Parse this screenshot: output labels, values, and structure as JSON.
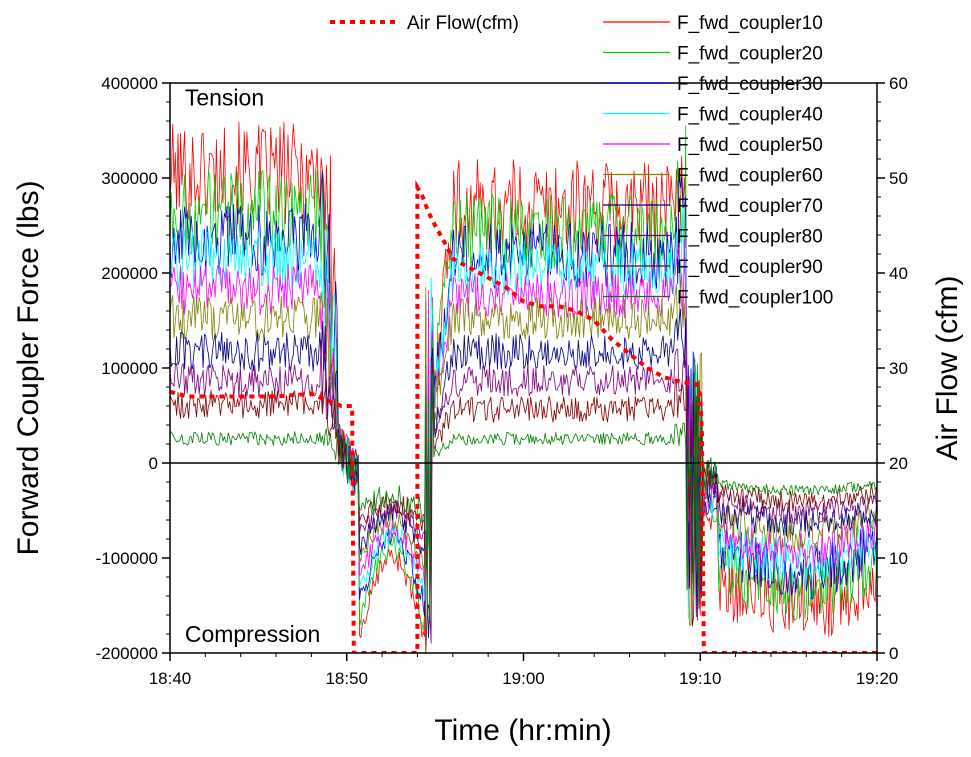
{
  "chart_data": {
    "type": "line",
    "title": "",
    "xlabel": "Time (hr:min)",
    "ylabel": "Forward Coupler Force (lbs)",
    "y2label": "Air Flow (cfm)",
    "x_unit": "minutes after 18:40",
    "xlim": [
      0,
      40
    ],
    "ylim": [
      -200000,
      400000
    ],
    "y2lim": [
      0,
      60
    ],
    "x_ticks": [
      {
        "value": 0,
        "label": "18:40"
      },
      {
        "value": 10,
        "label": "18:50"
      },
      {
        "value": 20,
        "label": "19:00"
      },
      {
        "value": 30,
        "label": "19:10"
      },
      {
        "value": 40,
        "label": "19:20"
      }
    ],
    "y_ticks": [
      {
        "value": 400000,
        "label": "400000"
      },
      {
        "value": 300000,
        "label": "300000"
      },
      {
        "value": 200000,
        "label": "200000"
      },
      {
        "value": 100000,
        "label": "100000"
      },
      {
        "value": 0,
        "label": "0"
      },
      {
        "value": -100000,
        "label": "-100000"
      },
      {
        "value": -200000,
        "label": "-200000"
      }
    ],
    "y2_ticks": [
      {
        "value": 60,
        "label": "60"
      },
      {
        "value": 50,
        "label": "50"
      },
      {
        "value": 40,
        "label": "40"
      },
      {
        "value": 30,
        "label": "30"
      },
      {
        "value": 20,
        "label": "20"
      },
      {
        "value": 10,
        "label": "10"
      },
      {
        "value": 0,
        "label": "0"
      }
    ],
    "annotations": [
      {
        "text": "Tension",
        "x": 0.5,
        "y": 385000
      },
      {
        "text": "Compression",
        "x": 0.5,
        "y": -180000
      }
    ],
    "legend": {
      "placement": "top-right, outside plot"
    },
    "zero_line": true,
    "airflow": {
      "name": "Air Flow(cfm)",
      "color": "#ff0000",
      "style": "dotted",
      "points": [
        [
          0,
          27.5
        ],
        [
          1,
          27
        ],
        [
          3,
          27
        ],
        [
          6,
          27
        ],
        [
          8,
          27.3
        ],
        [
          9,
          26.5
        ],
        [
          9.7,
          26
        ],
        [
          10.3,
          26
        ],
        [
          10.4,
          0
        ],
        [
          14,
          0
        ],
        [
          14,
          49
        ],
        [
          14.3,
          48
        ],
        [
          14.6,
          46.5
        ],
        [
          15,
          45
        ],
        [
          15.6,
          43
        ],
        [
          16,
          41.5
        ],
        [
          17,
          40.5
        ],
        [
          18,
          39.5
        ],
        [
          19,
          38.5
        ],
        [
          20,
          37
        ],
        [
          21,
          36.5
        ],
        [
          22,
          36.5
        ],
        [
          23,
          36
        ],
        [
          24,
          35
        ],
        [
          25,
          33
        ],
        [
          26,
          31.5
        ],
        [
          27,
          30
        ],
        [
          28,
          29
        ],
        [
          29,
          28.5
        ],
        [
          29.8,
          28.3
        ],
        [
          30,
          27
        ],
        [
          30.1,
          23
        ],
        [
          30.2,
          0
        ],
        [
          40,
          0
        ]
      ]
    },
    "series": [
      {
        "name": "F_fwd_coupler10",
        "color": "#ff0000",
        "level_A": 300000,
        "level_B": 265000,
        "level_C": -130000,
        "noise": 90000
      },
      {
        "name": "F_fwd_coupler20",
        "color": "#00d000",
        "level_A": 260000,
        "level_B": 240000,
        "level_C": -115000,
        "noise": 75000
      },
      {
        "name": "F_fwd_coupler30",
        "color": "#0000cc",
        "level_A": 230000,
        "level_B": 215000,
        "level_C": -100000,
        "noise": 65000
      },
      {
        "name": "F_fwd_coupler40",
        "color": "#00ffff",
        "level_A": 210000,
        "level_B": 200000,
        "level_C": -90000,
        "noise": 55000
      },
      {
        "name": "F_fwd_coupler50",
        "color": "#ff00ff",
        "level_A": 180000,
        "level_B": 175000,
        "level_C": -80000,
        "noise": 45000
      },
      {
        "name": "F_fwd_coupler60",
        "color": "#808000",
        "level_A": 150000,
        "level_B": 150000,
        "level_C": -65000,
        "noise": 40000
      },
      {
        "name": "F_fwd_coupler70",
        "color": "#000080",
        "level_A": 115000,
        "level_B": 115000,
        "level_C": -55000,
        "noise": 35000
      },
      {
        "name": "F_fwd_coupler80",
        "color": "#800080",
        "level_A": 85000,
        "level_B": 85000,
        "level_C": -45000,
        "noise": 30000
      },
      {
        "name": "F_fwd_coupler90",
        "color": "#800000",
        "level_A": 60000,
        "level_B": 55000,
        "level_C": -35000,
        "noise": 25000
      },
      {
        "name": "F_fwd_coupler100",
        "color": "#008000",
        "level_A": 25000,
        "level_B": 25000,
        "level_C": -25000,
        "noise": 12000
      }
    ]
  }
}
